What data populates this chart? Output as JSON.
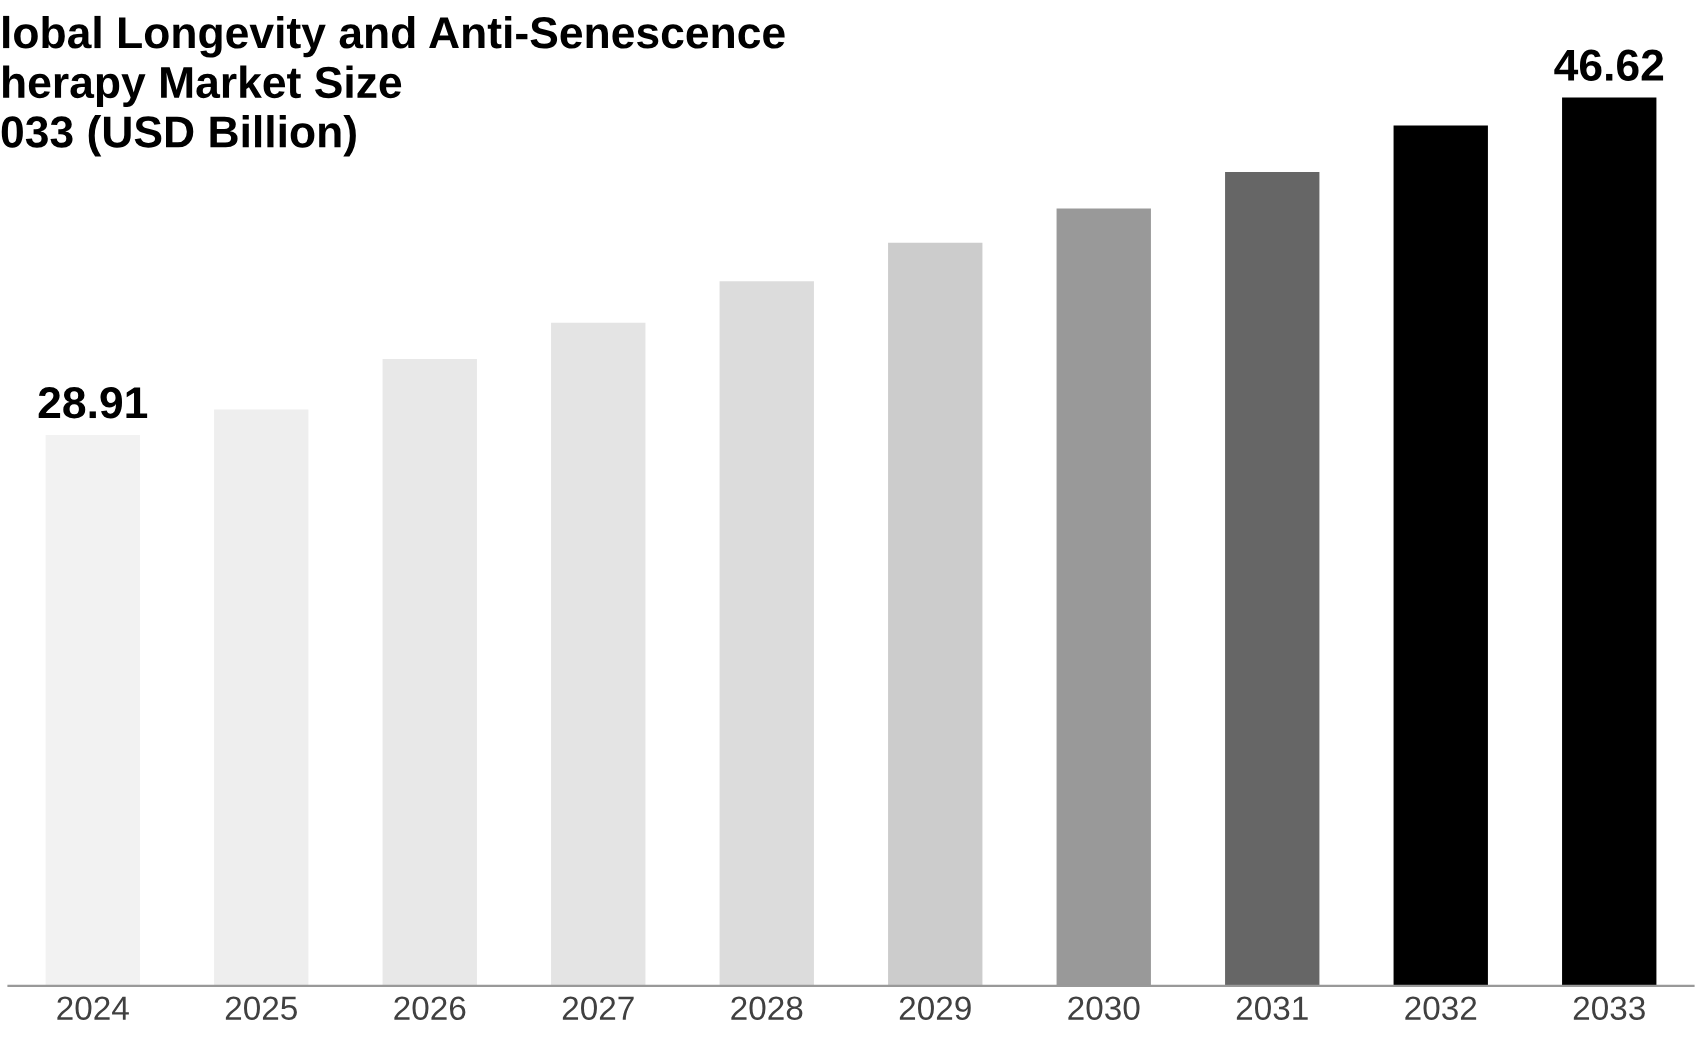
{
  "chart_data": {
    "type": "bar",
    "title": "lobal Longevity and Anti-Senescence\nherapy Market Size\n033 (USD Billion)",
    "categories": [
      "2024",
      "2025",
      "2026",
      "2027",
      "2028",
      "2029",
      "2030",
      "2031",
      "2032",
      "2033"
    ],
    "values": [
      28.91,
      30.24,
      32.89,
      34.8,
      36.97,
      38.99,
      40.79,
      42.7,
      45.14,
      46.62
    ],
    "colors": [
      "#f2f2f2",
      "#eeeeee",
      "#e8e8e8",
      "#e4e4e4",
      "#dcdcdc",
      "#cccccc",
      "#999999",
      "#666666",
      "#000000",
      "#000000"
    ],
    "value_labels": [
      "28.91",
      null,
      null,
      null,
      null,
      null,
      null,
      null,
      null,
      "46.62"
    ],
    "tick_labels": "x",
    "grid": false,
    "legend": false
  }
}
